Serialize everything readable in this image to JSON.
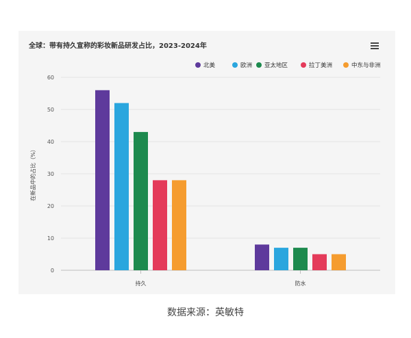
{
  "chart_data": {
    "type": "bar",
    "title": "全球：带有持久宣称的彩妆新品研发占比，2023-2024年",
    "ylabel": "在新品中的占比（%）",
    "xlabel": "",
    "categories": [
      "持久",
      "防水"
    ],
    "ylim": [
      0,
      60
    ],
    "yticks": [
      "0",
      "10",
      "20",
      "30",
      "40",
      "50",
      "60"
    ],
    "grid": true,
    "legend_position": "top-right",
    "series": [
      {
        "name": "北美",
        "color": "#5e3a9c",
        "values": [
          56,
          8
        ]
      },
      {
        "name": "欧洲",
        "color": "#2aa6de",
        "values": [
          52,
          7
        ]
      },
      {
        "name": "亚太地区",
        "color": "#1d8a4e",
        "values": [
          43,
          7
        ]
      },
      {
        "name": "拉丁美洲",
        "color": "#e43b5a",
        "values": [
          28,
          5
        ]
      },
      {
        "name": "中东与非洲",
        "color": "#f59c2f",
        "values": [
          28,
          5
        ]
      }
    ]
  },
  "source_caption": "数据来源：英敏特",
  "menu_icon": "hamburger-menu-icon"
}
